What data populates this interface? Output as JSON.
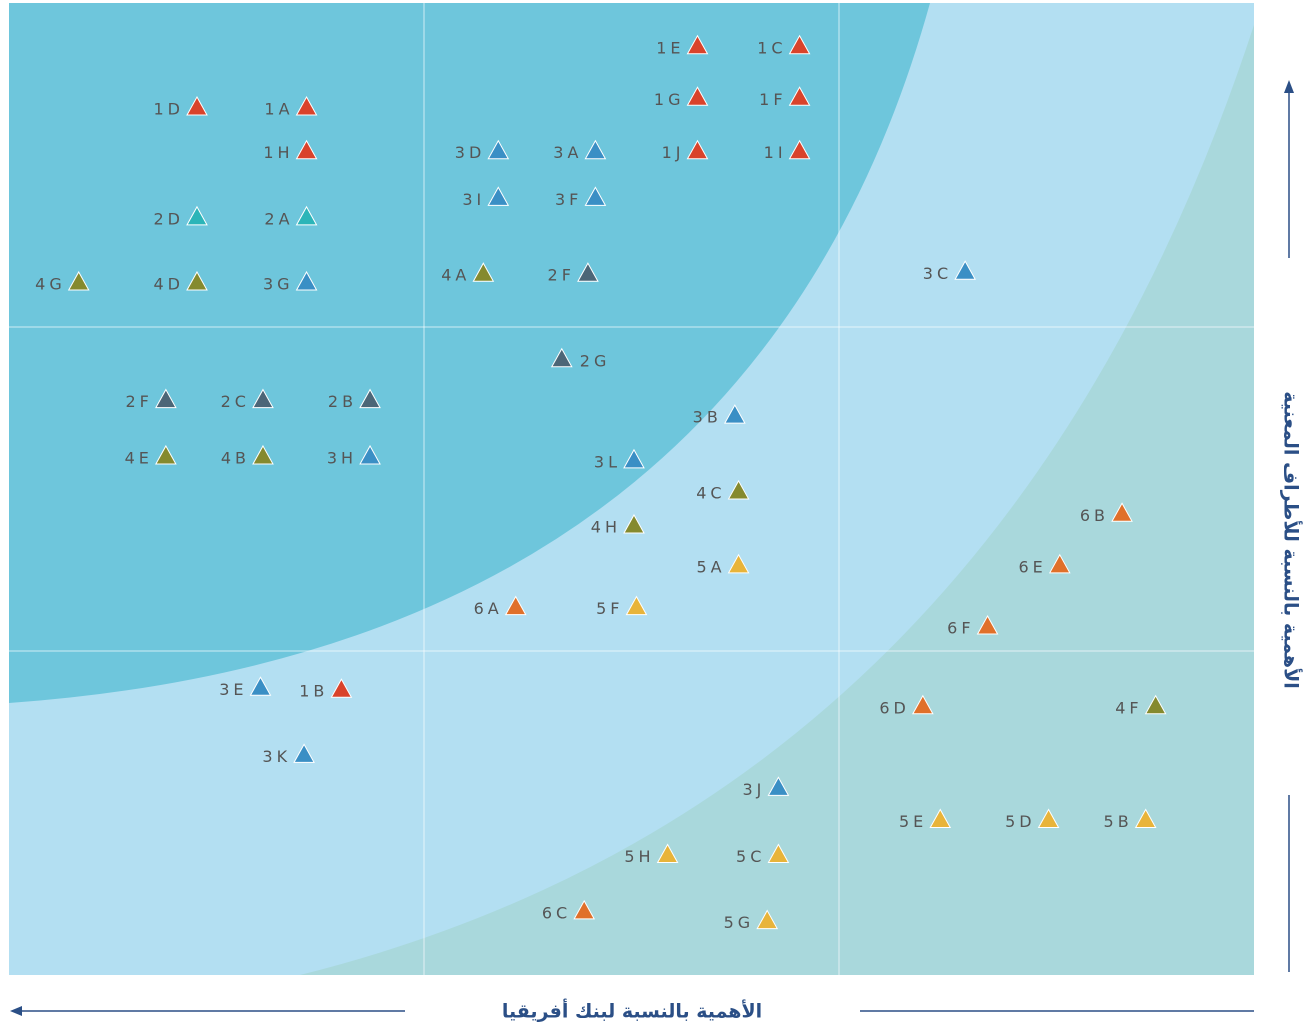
{
  "chart_data": {
    "type": "scatter",
    "xlabel": "الأهمية بالنسبة لبنك أفريقيا",
    "ylabel": "الأهمية بالنسبة للأطراف المعنية",
    "xlim": [
      0,
      100
    ],
    "ylim": [
      0,
      100
    ],
    "xreverse": true,
    "grid": true,
    "gridlines": 3,
    "points": [
      {
        "label": "1E",
        "x": 44.7,
        "y": 95.6,
        "color": "#d9432b"
      },
      {
        "label": "1C",
        "x": 36.5,
        "y": 95.6,
        "color": "#d9432b"
      },
      {
        "label": "1G",
        "x": 44.7,
        "y": 90.3,
        "color": "#d9432b"
      },
      {
        "label": "1F",
        "x": 36.5,
        "y": 90.3,
        "color": "#d9432b"
      },
      {
        "label": "1J",
        "x": 44.7,
        "y": 84.8,
        "color": "#d9432b"
      },
      {
        "label": "1I",
        "x": 36.5,
        "y": 84.8,
        "color": "#d9432b"
      },
      {
        "label": "1D",
        "x": 84.9,
        "y": 89.3,
        "color": "#d9432b"
      },
      {
        "label": "1A",
        "x": 76.1,
        "y": 89.3,
        "color": "#d9432b"
      },
      {
        "label": "1H",
        "x": 76.1,
        "y": 84.8,
        "color": "#d9432b"
      },
      {
        "label": "2D",
        "x": 84.9,
        "y": 78.0,
        "color": "#2bb5b8"
      },
      {
        "label": "2A",
        "x": 76.1,
        "y": 78.0,
        "color": "#2bb5b8"
      },
      {
        "label": "3D",
        "x": 60.7,
        "y": 84.8,
        "color": "#3a8fc5"
      },
      {
        "label": "3A",
        "x": 52.9,
        "y": 84.8,
        "color": "#3a8fc5"
      },
      {
        "label": "3I",
        "x": 60.7,
        "y": 80.0,
        "color": "#3a8fc5"
      },
      {
        "label": "3F",
        "x": 52.9,
        "y": 80.0,
        "color": "#3a8fc5"
      },
      {
        "label": "4G",
        "x": 94.4,
        "y": 71.3,
        "color": "#858a2e"
      },
      {
        "label": "4D",
        "x": 84.9,
        "y": 71.3,
        "color": "#858a2e"
      },
      {
        "label": "3G",
        "x": 76.1,
        "y": 71.3,
        "color": "#3a8fc5"
      },
      {
        "label": "4A",
        "x": 61.9,
        "y": 72.2,
        "color": "#858a2e"
      },
      {
        "label": "2F",
        "x": 53.5,
        "y": 72.2,
        "color": "#4c6677"
      },
      {
        "label": "3C",
        "x": 23.2,
        "y": 72.4,
        "color": "#3a8fc5"
      },
      {
        "label": "2G",
        "x": 55.6,
        "y": 63.4,
        "color": "#4c6677",
        "label_position": "right"
      },
      {
        "label": "2F",
        "x": 87.4,
        "y": 59.2,
        "color": "#4c6677"
      },
      {
        "label": "2C",
        "x": 79.6,
        "y": 59.2,
        "color": "#4c6677"
      },
      {
        "label": "2B",
        "x": 71.0,
        "y": 59.2,
        "color": "#4c6677"
      },
      {
        "label": "3B",
        "x": 41.7,
        "y": 57.6,
        "color": "#3a8fc5"
      },
      {
        "label": "4E",
        "x": 87.4,
        "y": 53.4,
        "color": "#858a2e"
      },
      {
        "label": "4B",
        "x": 79.6,
        "y": 53.4,
        "color": "#858a2e"
      },
      {
        "label": "3H",
        "x": 71.0,
        "y": 53.4,
        "color": "#3a8fc5"
      },
      {
        "label": "3L",
        "x": 49.8,
        "y": 53.0,
        "color": "#3a8fc5"
      },
      {
        "label": "4C",
        "x": 41.4,
        "y": 49.8,
        "color": "#858a2e"
      },
      {
        "label": "4H",
        "x": 49.8,
        "y": 46.3,
        "color": "#858a2e"
      },
      {
        "label": "6B",
        "x": 10.6,
        "y": 47.5,
        "color": "#e0702a"
      },
      {
        "label": "5A",
        "x": 41.4,
        "y": 42.2,
        "color": "#e8b43a"
      },
      {
        "label": "6E",
        "x": 15.6,
        "y": 42.2,
        "color": "#e0702a"
      },
      {
        "label": "6A",
        "x": 59.3,
        "y": 37.9,
        "color": "#e0702a"
      },
      {
        "label": "5F",
        "x": 49.6,
        "y": 37.9,
        "color": "#e8b43a"
      },
      {
        "label": "6F",
        "x": 21.4,
        "y": 35.9,
        "color": "#e0702a"
      },
      {
        "label": "3E",
        "x": 79.8,
        "y": 29.6,
        "color": "#3a8fc5"
      },
      {
        "label": "1B",
        "x": 73.3,
        "y": 29.4,
        "color": "#d9432b"
      },
      {
        "label": "6D",
        "x": 26.6,
        "y": 27.7,
        "color": "#e0702a"
      },
      {
        "label": "4F",
        "x": 7.9,
        "y": 27.7,
        "color": "#858a2e"
      },
      {
        "label": "3K",
        "x": 76.3,
        "y": 22.7,
        "color": "#3a8fc5"
      },
      {
        "label": "3J",
        "x": 38.2,
        "y": 19.3,
        "color": "#3a8fc5"
      },
      {
        "label": "5E",
        "x": 25.2,
        "y": 16.0,
        "color": "#e8b43a"
      },
      {
        "label": "5D",
        "x": 16.5,
        "y": 16.0,
        "color": "#e8b43a"
      },
      {
        "label": "5B",
        "x": 8.7,
        "y": 16.0,
        "color": "#e8b43a"
      },
      {
        "label": "5H",
        "x": 47.1,
        "y": 12.4,
        "color": "#e8b43a"
      },
      {
        "label": "5C",
        "x": 38.2,
        "y": 12.4,
        "color": "#e8b43a"
      },
      {
        "label": "6C",
        "x": 53.8,
        "y": 6.6,
        "color": "#e0702a"
      },
      {
        "label": "5G",
        "x": 39.1,
        "y": 5.6,
        "color": "#e8b43a"
      }
    ]
  }
}
